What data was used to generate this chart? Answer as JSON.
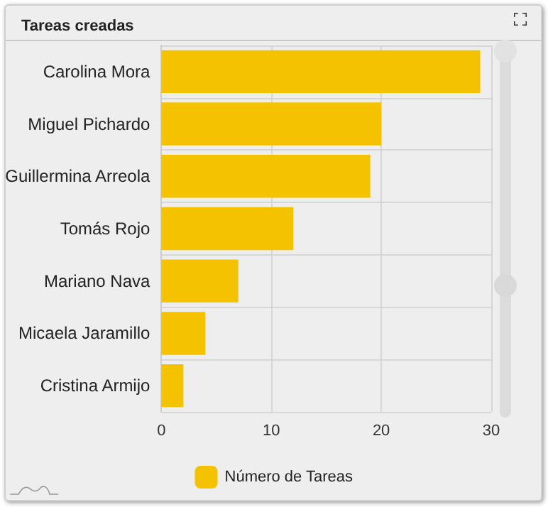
{
  "chart_data": {
    "type": "bar",
    "title": "Tareas creadas",
    "orientation": "horizontal",
    "categories": [
      "Carolina Mora",
      "Miguel Pichardo",
      "Guillermina Arreola",
      "Tomás Rojo",
      "Mariano Nava",
      "Micaela Jaramillo",
      "Cristina Armijo"
    ],
    "series": [
      {
        "name": "Número de Tareas",
        "color": "#f5c200",
        "values": [
          29,
          20,
          19,
          12,
          7,
          4,
          2
        ]
      }
    ],
    "xlim": [
      0,
      30
    ],
    "xticks": [
      0,
      10,
      20,
      30
    ],
    "grid": true,
    "legend": "bottom"
  }
}
